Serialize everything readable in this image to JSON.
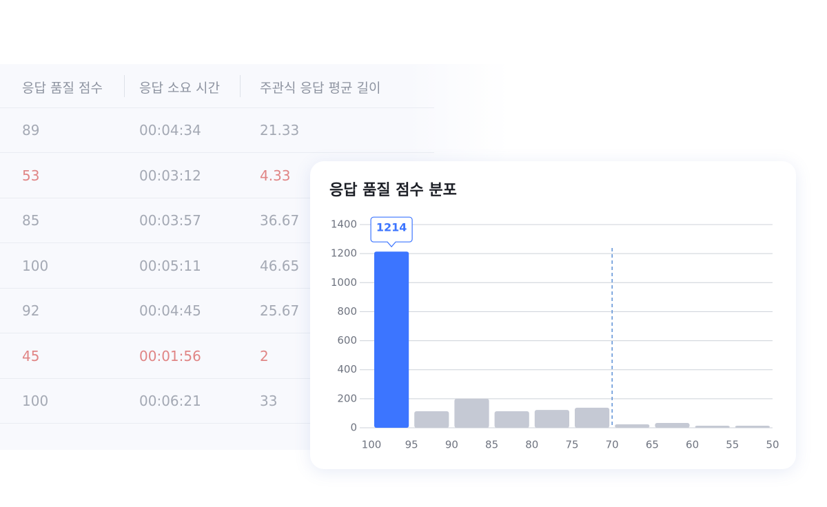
{
  "table": {
    "headers": [
      "응답 품질 점수",
      "응답 소요 시간",
      "주관식 응답 평균 길이"
    ],
    "rows": [
      [
        "89",
        "00:04:34",
        "21.33"
      ],
      [
        "53",
        "00:03:12",
        "4.33"
      ],
      [
        "85",
        "00:03:57",
        "36.67"
      ],
      [
        "100",
        "00:05:11",
        "46.65"
      ],
      [
        "92",
        "00:04:45",
        "25.67"
      ],
      [
        "45",
        "00:01:56",
        "2"
      ],
      [
        "100",
        "00:06:21",
        "33"
      ]
    ]
  },
  "chart_data": {
    "type": "histogram",
    "title": "응답 품질 점수 분포",
    "bins": [
      100,
      95,
      90,
      85,
      80,
      75,
      70,
      65,
      60,
      55,
      50
    ],
    "values": [
      1214,
      114,
      200,
      114,
      123,
      138,
      24,
      33,
      14,
      14
    ],
    "colors": [
      "#3c75ff",
      "#c5c9d4",
      "#c5c9d4",
      "#c5c9d4",
      "#c5c9d4",
      "#c5c9d4",
      "#c5c9d4",
      "#c5c9d4",
      "#c5c9d4",
      "#c5c9d4"
    ],
    "threshold_x": 70,
    "xlim": [
      100,
      50
    ],
    "xticks": [
      100,
      95,
      90,
      85,
      80,
      75,
      70,
      65,
      60,
      55,
      50
    ],
    "ylim": [
      0,
      1400
    ],
    "yticks": [
      0,
      200,
      400,
      600,
      800,
      1000,
      1200,
      1400
    ],
    "grid": true
  }
}
